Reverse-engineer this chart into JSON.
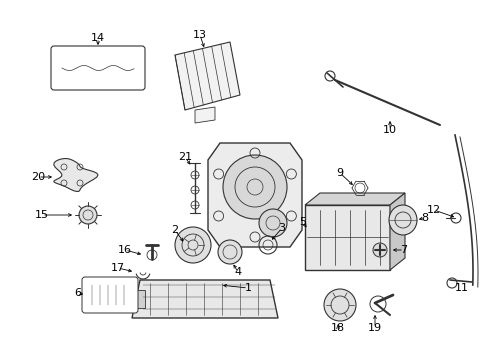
{
  "bg_color": "#ffffff",
  "line_color": "#333333",
  "text_color": "#000000",
  "fig_width": 4.89,
  "fig_height": 3.6,
  "dpi": 100
}
